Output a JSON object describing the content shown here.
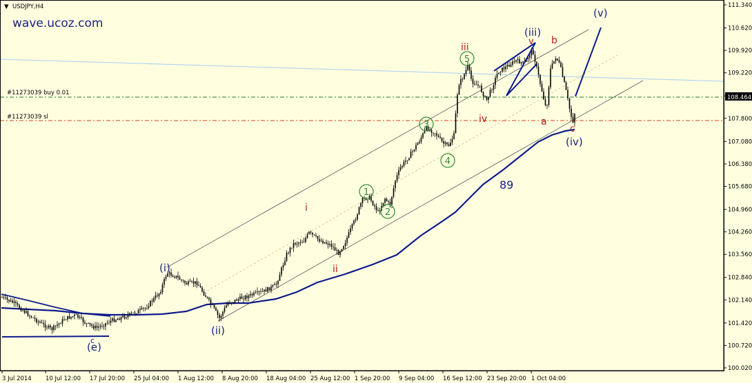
{
  "chart_data": {
    "type": "candlestick",
    "symbol_label": "USDJPY,H4",
    "watermark": "wave.ucoz.com",
    "current_price": "108.464",
    "y_ticks": [
      "111.340",
      "110.620",
      "109.920",
      "109.220",
      "108.500",
      "107.800",
      "107.080",
      "106.380",
      "105.680",
      "104.960",
      "104.260",
      "103.560",
      "102.840",
      "102.140",
      "101.420",
      "100.720",
      "100.020"
    ],
    "x_ticks": [
      "3 Jul 2014",
      "10 Jul 12:00",
      "17 Jul 20:00",
      "25 Jul 04:00",
      "1 Aug 12:00",
      "8 Aug 20:00",
      "18 Aug 04:00",
      "25 Aug 12:00",
      "1 Sep 20:00",
      "9 Sep 04:00",
      "16 Sep 12:00",
      "23 Sep 20:00",
      "1 Oct 04:00"
    ],
    "ylim": [
      100.02,
      111.34
    ],
    "orders": [
      {
        "label": "#11273039 buy 0.01",
        "price": 108.464,
        "color": "#1f7a1f"
      },
      {
        "label": "#11273039 sl",
        "price": 107.67,
        "color": "#e03c1e"
      }
    ],
    "wave_labels": [
      {
        "text": "(i)",
        "color": "#1a237e"
      },
      {
        "text": "(ii)",
        "color": "#1a237e"
      },
      {
        "text": "(iii)",
        "color": "#1a237e"
      },
      {
        "text": "(iv)",
        "color": "#1a237e"
      },
      {
        "text": "(v)",
        "color": "#1a237e"
      },
      {
        "text": "(e)",
        "color": "#1a237e"
      },
      {
        "text": "c",
        "color": "#1a237e"
      },
      {
        "text": "i",
        "color": "#b71c1c"
      },
      {
        "text": "ii",
        "color": "#b71c1c"
      },
      {
        "text": "iii",
        "color": "#b71c1c"
      },
      {
        "text": "iv",
        "color": "#b71c1c"
      },
      {
        "text": "v",
        "color": "#b71c1c"
      },
      {
        "text": "a",
        "color": "#b71c1c"
      },
      {
        "text": "b",
        "color": "#b71c1c"
      },
      {
        "text": "c",
        "color": "#b71c1c"
      },
      {
        "text": "89",
        "color": "#1a237e"
      }
    ],
    "circled_labels": [
      "1",
      "2",
      "3",
      "4",
      "5"
    ],
    "ma_label": "89",
    "colors": {
      "background": "#ffffe0",
      "candles": "#000000",
      "ma": "#0d1a8c",
      "circle": "#2e8b2e"
    }
  }
}
